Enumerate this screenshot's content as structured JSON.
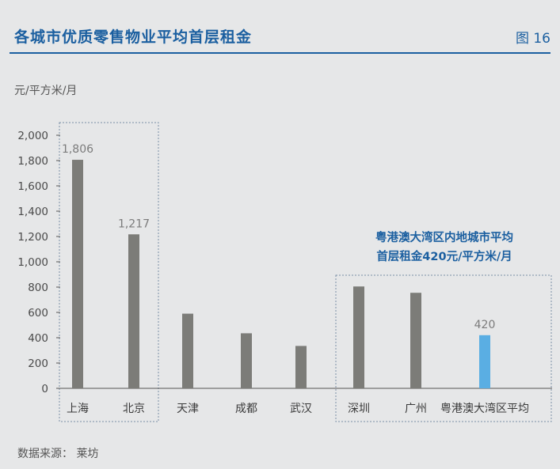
{
  "header": {
    "title": "各城市优质零售物业平均首层租金",
    "figure_label": "图 16",
    "unit": "元/平方米/月",
    "source": "数据来源：  莱坊"
  },
  "colors": {
    "accent": "#1b5fa0",
    "bar": "#7c7c78",
    "highlight_bar": "#5aaee3",
    "box": "#7a8fa6"
  },
  "chart_data": {
    "type": "bar",
    "categories": [
      "上海",
      "北京",
      "天津",
      "成都",
      "武汉",
      "深圳",
      "广州",
      "粤港澳大湾区平均"
    ],
    "values": [
      1806,
      1217,
      590,
      435,
      335,
      805,
      755,
      420
    ],
    "data_labels": [
      "1,806",
      "1,217",
      "",
      "",
      "",
      "",
      "",
      "420"
    ],
    "highlight": [
      false,
      false,
      false,
      false,
      false,
      false,
      false,
      true
    ],
    "ylim": [
      0,
      2000
    ],
    "yticks": [
      0,
      200,
      400,
      600,
      800,
      1000,
      1200,
      1400,
      1600,
      1800,
      2000
    ],
    "ytick_labels": [
      "0",
      "200",
      "400",
      "600",
      "800",
      "1,000",
      "1,200",
      "1,400",
      "1,600",
      "1,800",
      "2,000"
    ],
    "ylabel": "元/平方米/月",
    "grid": false,
    "annotation": [
      "粤港澳大湾区内地城市平均",
      "首层租金420元/平方米/月"
    ]
  }
}
